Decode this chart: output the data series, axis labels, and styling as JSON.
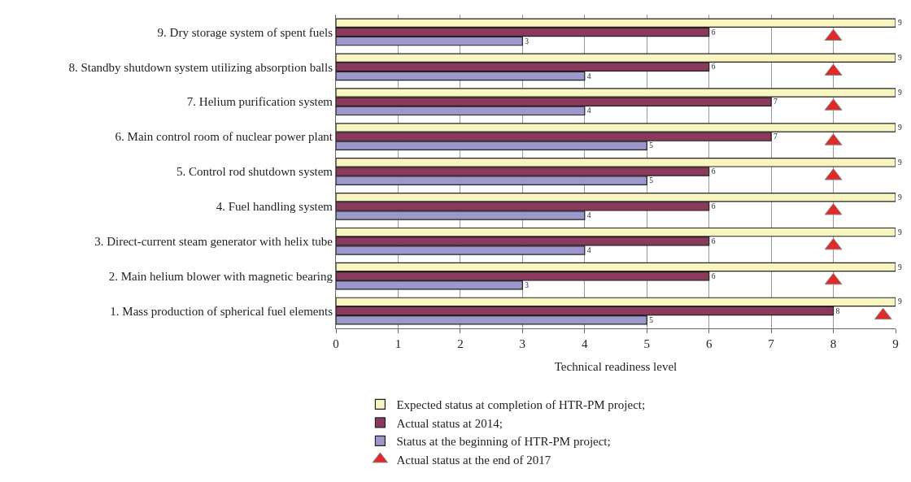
{
  "chart_data": {
    "type": "bar",
    "orientation": "horizontal",
    "xlabel": "Technical readiness level",
    "categories": [
      "9. Dry storage system of spent fuels",
      "8. Standby shutdown system utilizing absorption balls",
      "7. Helium purification system",
      "6. Main control room of nuclear power plant",
      "5. Control rod shutdown system",
      "4. Fuel handling system",
      "3. Direct-current steam generator with helix tube",
      "2. Main helium blower with magnetic bearing",
      "1. Mass production of spherical fuel elements"
    ],
    "series": [
      {
        "name": "Expected status at completion of HTR-PM project;",
        "color": "#f8f5c0",
        "values": [
          9,
          9,
          9,
          9,
          9,
          9,
          9,
          9,
          9
        ],
        "value_labels": [
          "9",
          "9",
          "9",
          "9",
          "9",
          "9",
          "9",
          "9",
          "9"
        ]
      },
      {
        "name": "Actual status at 2014;",
        "color": "#8b3a5e",
        "values": [
          6,
          6,
          7,
          7,
          6,
          6,
          6,
          6,
          8
        ],
        "value_labels": [
          "6",
          "6",
          "7",
          "7",
          "6",
          "6",
          "6",
          "6",
          "8"
        ]
      },
      {
        "name": "Status at the beginning of HTR-PM project;",
        "color": "#9d98cc",
        "values": [
          3,
          4,
          4,
          5,
          5,
          4,
          4,
          3,
          5
        ],
        "value_labels": [
          "3",
          "4",
          "4",
          "5",
          "5",
          "4",
          "4",
          "3",
          "5"
        ]
      },
      {
        "name": "Actual status at the end of 2017",
        "type": "scatter",
        "marker": "triangle",
        "color": "#e02a2a",
        "values": [
          8,
          8,
          8,
          8,
          8,
          8,
          8,
          8,
          8.8
        ]
      }
    ],
    "xlim": [
      0,
      9
    ],
    "xticks": [
      0,
      1,
      2,
      3,
      4,
      5,
      6,
      7,
      8,
      9
    ],
    "grid": "x",
    "legend": "bottom"
  }
}
